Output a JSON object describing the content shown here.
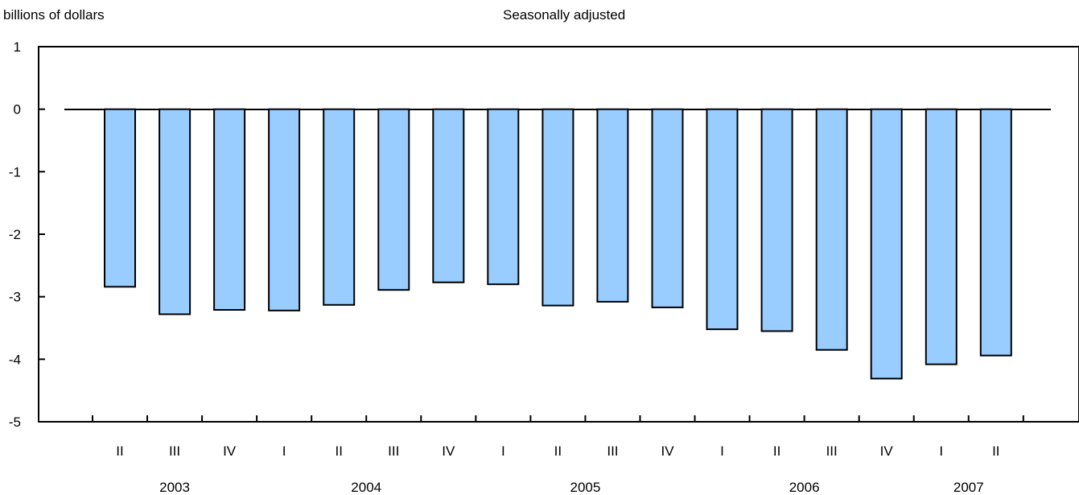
{
  "chart_data": {
    "type": "bar",
    "title": "",
    "subtitle": "Seasonally adjusted",
    "ylabel": "billions of dollars",
    "xlabel": "",
    "ylim": [
      -5,
      1
    ],
    "yticks": [
      "1",
      "0",
      "-1",
      "-2",
      "-3",
      "-4",
      "-5"
    ],
    "grid": false,
    "legend": "none",
    "bar_color": "#99ccff",
    "categories": [
      "II",
      "III",
      "IV",
      "I",
      "II",
      "III",
      "IV",
      "I",
      "II",
      "III",
      "IV",
      "I",
      "II",
      "III",
      "IV",
      "I",
      "II"
    ],
    "years": [
      {
        "label": "2003",
        "span": [
          0,
          2
        ]
      },
      {
        "label": "2004",
        "span": [
          3,
          6
        ]
      },
      {
        "label": "2005",
        "span": [
          7,
          10
        ]
      },
      {
        "label": "2006",
        "span": [
          11,
          14
        ]
      },
      {
        "label": "2007",
        "span": [
          15,
          16
        ]
      }
    ],
    "values": [
      -2.84,
      -3.28,
      -3.21,
      -3.22,
      -3.13,
      -2.89,
      -2.77,
      -2.8,
      -3.14,
      -3.08,
      -3.17,
      -3.52,
      -3.55,
      -3.85,
      -4.31,
      -4.08,
      -3.94
    ]
  }
}
